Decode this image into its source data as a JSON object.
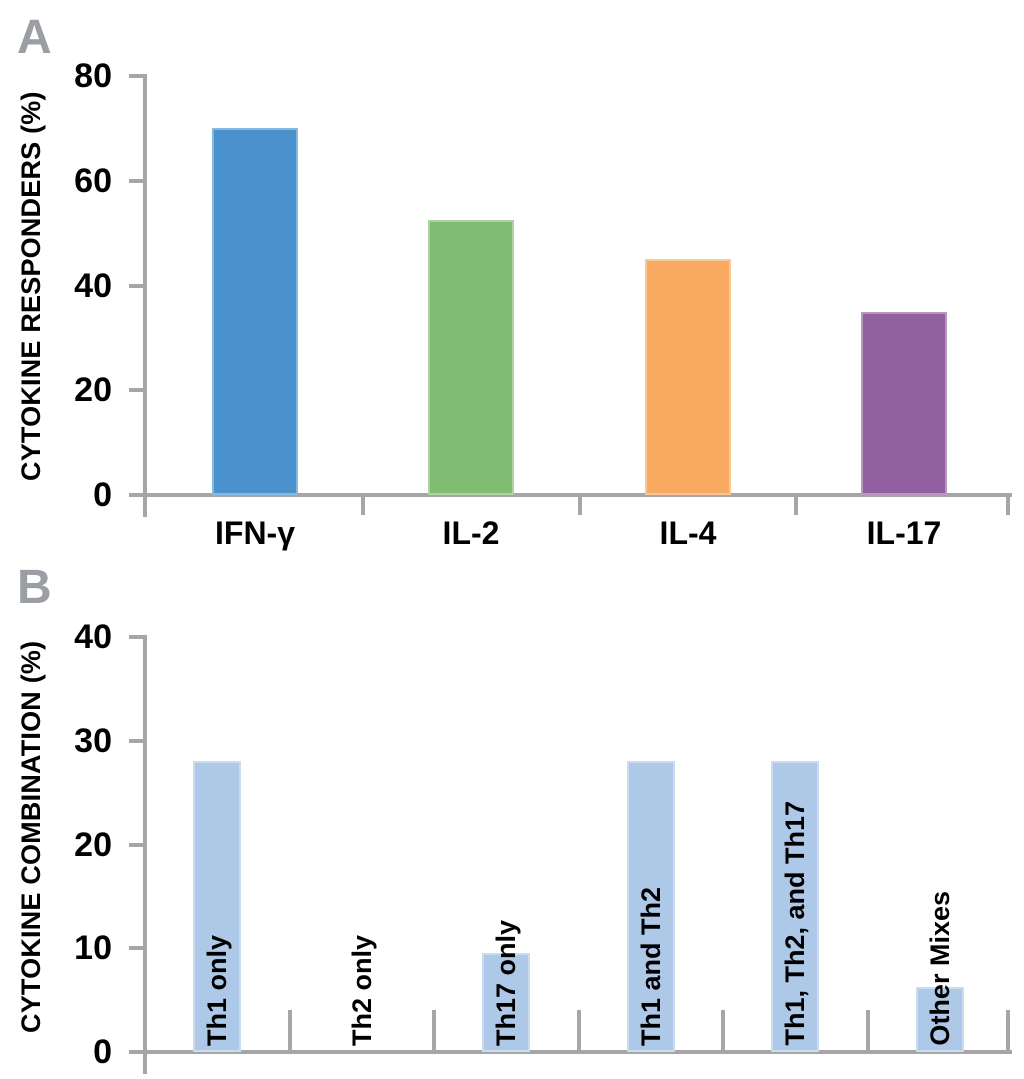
{
  "figure": {
    "panels": [
      {
        "letter": "A",
        "y_axis_title": "CYTOKINE RESPONDERS (%)"
      },
      {
        "letter": "B",
        "y_axis_title": "CYTOKINE COMBINATION (%)"
      }
    ]
  },
  "chart_data": [
    {
      "type": "bar",
      "panel": "A",
      "title": "",
      "xlabel": "",
      "ylabel": "CYTOKINE RESPONDERS (%)",
      "categories": [
        "IFN-γ",
        "IL-2",
        "IL-4",
        "IL-17"
      ],
      "values": [
        70,
        52.5,
        45,
        35
      ],
      "bar_colors": [
        "#4a92ce",
        "#80bd72",
        "#f8ab60",
        "#92609f"
      ],
      "ylim": [
        0,
        80
      ],
      "yticks": [
        0,
        20,
        40,
        60,
        80
      ],
      "grid": false,
      "legend": null,
      "category_label_style": "horizontal-below-axis"
    },
    {
      "type": "bar",
      "panel": "B",
      "title": "",
      "xlabel": "",
      "ylabel": "CYTOKINE COMBINATION (%)",
      "categories": [
        "Th1 only",
        "Th2 only",
        "Th17 only",
        "Th1 and Th2",
        "Th1, Th2, and Th17",
        "Other Mixes"
      ],
      "values": [
        28,
        0,
        9.5,
        28,
        28,
        6.3
      ],
      "bar_colors": [
        "#aec9e8",
        "#aec9e8",
        "#aec9e8",
        "#aec9e8",
        "#aec9e8",
        "#aec9e8"
      ],
      "ylim": [
        0,
        40
      ],
      "yticks": [
        0,
        10,
        20,
        30,
        40
      ],
      "grid": false,
      "legend": null,
      "category_label_style": "rotated-90-at-baseline"
    }
  ],
  "colors": {
    "axis": "#a6a6a6",
    "panel_letter": "#9b9ea3",
    "text": "#000000",
    "background": "#ffffff"
  }
}
